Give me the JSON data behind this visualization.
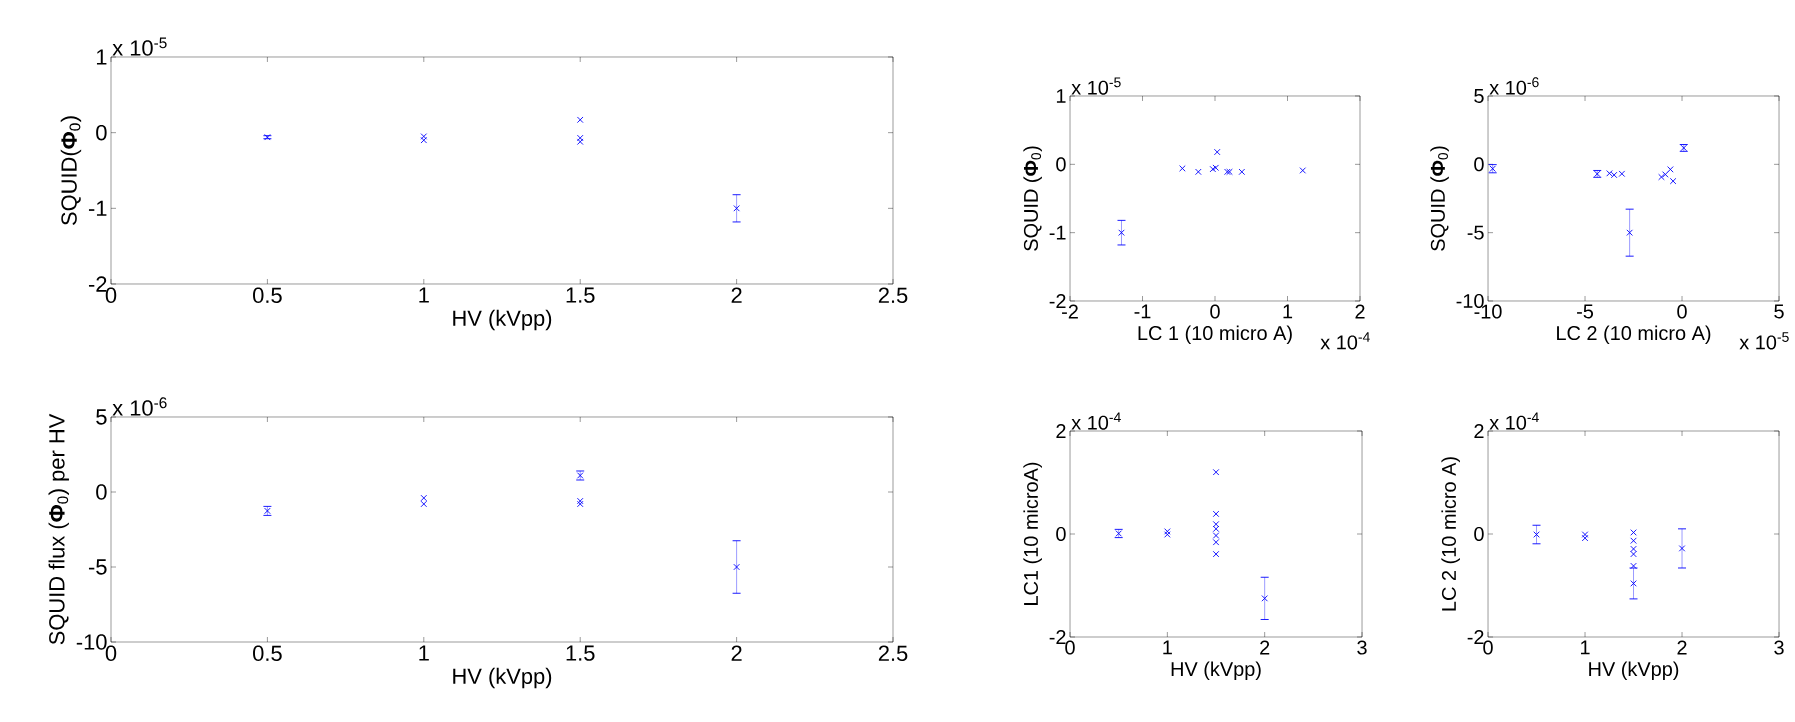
{
  "chart_data": [
    {
      "type": "scatter",
      "xlabel": "HV (kVpp)",
      "ylabel": "SQUID(**Φ**$_{0}$)",
      "annotations": [
        "x 10$^{-5}$"
      ],
      "marker": "cross",
      "xlim": [
        0,
        2.5
      ],
      "xticks": [
        0,
        0.5,
        1,
        1.5,
        2,
        2.5
      ],
      "ylim": [
        -2,
        1
      ],
      "yticks": [
        -2,
        -1,
        0,
        1
      ],
      "series": [
        {
          "color": "#0000ff",
          "x": [
            0.5,
            1,
            1,
            1.5,
            1.5,
            1.5,
            2
          ],
          "values": [
            -0.06,
            -0.05,
            -0.1,
            0.17,
            -0.07,
            -0.12,
            -1.0
          ],
          "errors": [
            0.02,
            null,
            null,
            null,
            null,
            null,
            0.18
          ]
        }
      ]
    },
    {
      "type": "scatter",
      "xlabel": "HV (kVpp)",
      "ylabel": "SQUID flux (**Φ**$_{0}$) per HV",
      "annotations": [
        "x 10$^{-6}$"
      ],
      "marker": "cross",
      "xlim": [
        0,
        2.5
      ],
      "xticks": [
        0,
        0.5,
        1,
        1.5,
        2,
        2.5
      ],
      "ylim": [
        -10,
        5
      ],
      "yticks": [
        -10,
        -5,
        0,
        5
      ],
      "series": [
        {
          "color": "#0000ff",
          "x": [
            0.5,
            1,
            1,
            1.5,
            1.5,
            1.5,
            2
          ],
          "values": [
            -1.26,
            -0.4,
            -0.8,
            1.1,
            -0.6,
            -0.8,
            -5.0
          ],
          "errors": [
            0.3,
            null,
            null,
            0.3,
            null,
            null,
            1.75
          ]
        }
      ]
    },
    {
      "type": "scatter",
      "xlabel": "LC 1 (10 micro A)",
      "ylabel": "SQUID (**Φ**$_{0}$)",
      "annotations": [
        "x 10$^{-5}$",
        "x 10$^{-4}$"
      ],
      "marker": "cross",
      "xlim": [
        -2,
        2
      ],
      "xticks": [
        -2,
        -1,
        0,
        1,
        2
      ],
      "ylim": [
        -2,
        1
      ],
      "yticks": [
        -2,
        -1,
        0,
        1
      ],
      "series": [
        {
          "color": "#0000ff",
          "x": [
            -1.29,
            -0.45,
            -0.23,
            -0.03,
            0.01,
            0.03,
            0.17,
            0.2,
            0.37,
            1.21
          ],
          "values": [
            -1.0,
            -0.06,
            -0.11,
            -0.07,
            -0.05,
            0.18,
            -0.11,
            -0.11,
            -0.11,
            -0.09
          ],
          "errors": [
            0.18,
            null,
            null,
            null,
            null,
            null,
            null,
            null,
            null,
            null
          ]
        }
      ]
    },
    {
      "type": "scatter",
      "xlabel": "LC 2 (10 micro A)",
      "ylabel": "SQUID (**Φ**$_{0}$)",
      "annotations": [
        "x 10$^{-6}$",
        "x 10$^{-5}$"
      ],
      "marker": "cross",
      "xlim": [
        -10,
        5
      ],
      "xticks": [
        -10,
        -5,
        0,
        5
      ],
      "ylim": [
        -10,
        5
      ],
      "yticks": [
        -10,
        -5,
        0,
        5
      ],
      "series": [
        {
          "color": "#0000ff",
          "x": [
            -9.76,
            -4.37,
            -3.74,
            -3.5,
            -3.1,
            -2.7,
            -1.06,
            -0.86,
            -0.6,
            -0.46,
            0.09
          ],
          "values": [
            -0.32,
            -0.7,
            -0.66,
            -0.78,
            -0.69,
            -5.0,
            -0.93,
            -0.74,
            -0.37,
            -1.23,
            1.2
          ],
          "errors": [
            0.3,
            0.25,
            null,
            null,
            null,
            1.72,
            null,
            null,
            null,
            null,
            0.25
          ]
        }
      ]
    },
    {
      "type": "scatter",
      "xlabel": "HV (kVpp)",
      "ylabel": "LC1 (10 microA)",
      "annotations": [
        "x 10$^{-4}$"
      ],
      "marker": "cross",
      "xlim": [
        0,
        3
      ],
      "xticks": [
        0,
        1,
        2,
        3
      ],
      "ylim": [
        -2,
        2
      ],
      "yticks": [
        -2,
        0,
        2
      ],
      "series": [
        {
          "color": "#0000ff",
          "x": [
            0.5,
            1,
            1,
            1.5,
            1.5,
            1.5,
            1.5,
            1.5,
            1.5,
            1.5,
            2
          ],
          "values": [
            0.01,
            0.05,
            -0.01,
            1.2,
            0.39,
            0.19,
            0.1,
            -0.03,
            -0.16,
            -0.39,
            -1.25
          ],
          "errors": [
            0.08,
            null,
            null,
            null,
            null,
            null,
            null,
            null,
            null,
            null,
            0.41
          ]
        }
      ]
    },
    {
      "type": "scatter",
      "xlabel": "HV (kVpp)",
      "ylabel": "LC 2 (10 micro A)",
      "annotations": [
        "x 10$^{-4}$"
      ],
      "marker": "cross",
      "xlim": [
        0,
        3
      ],
      "xticks": [
        0,
        1,
        2,
        3
      ],
      "ylim": [
        -2,
        2
      ],
      "yticks": [
        -2,
        0,
        2
      ],
      "series": [
        {
          "color": "#0000ff",
          "x": [
            0.5,
            1,
            1,
            1.5,
            1.5,
            1.5,
            1.5,
            1.5,
            1.5,
            2
          ],
          "values": [
            -0.01,
            -0.01,
            -0.08,
            0.03,
            -0.13,
            -0.29,
            -0.39,
            -0.62,
            -0.96,
            -0.28
          ],
          "errors": [
            0.18,
            null,
            null,
            null,
            null,
            null,
            null,
            null,
            0.3,
            0.38
          ]
        }
      ]
    }
  ]
}
